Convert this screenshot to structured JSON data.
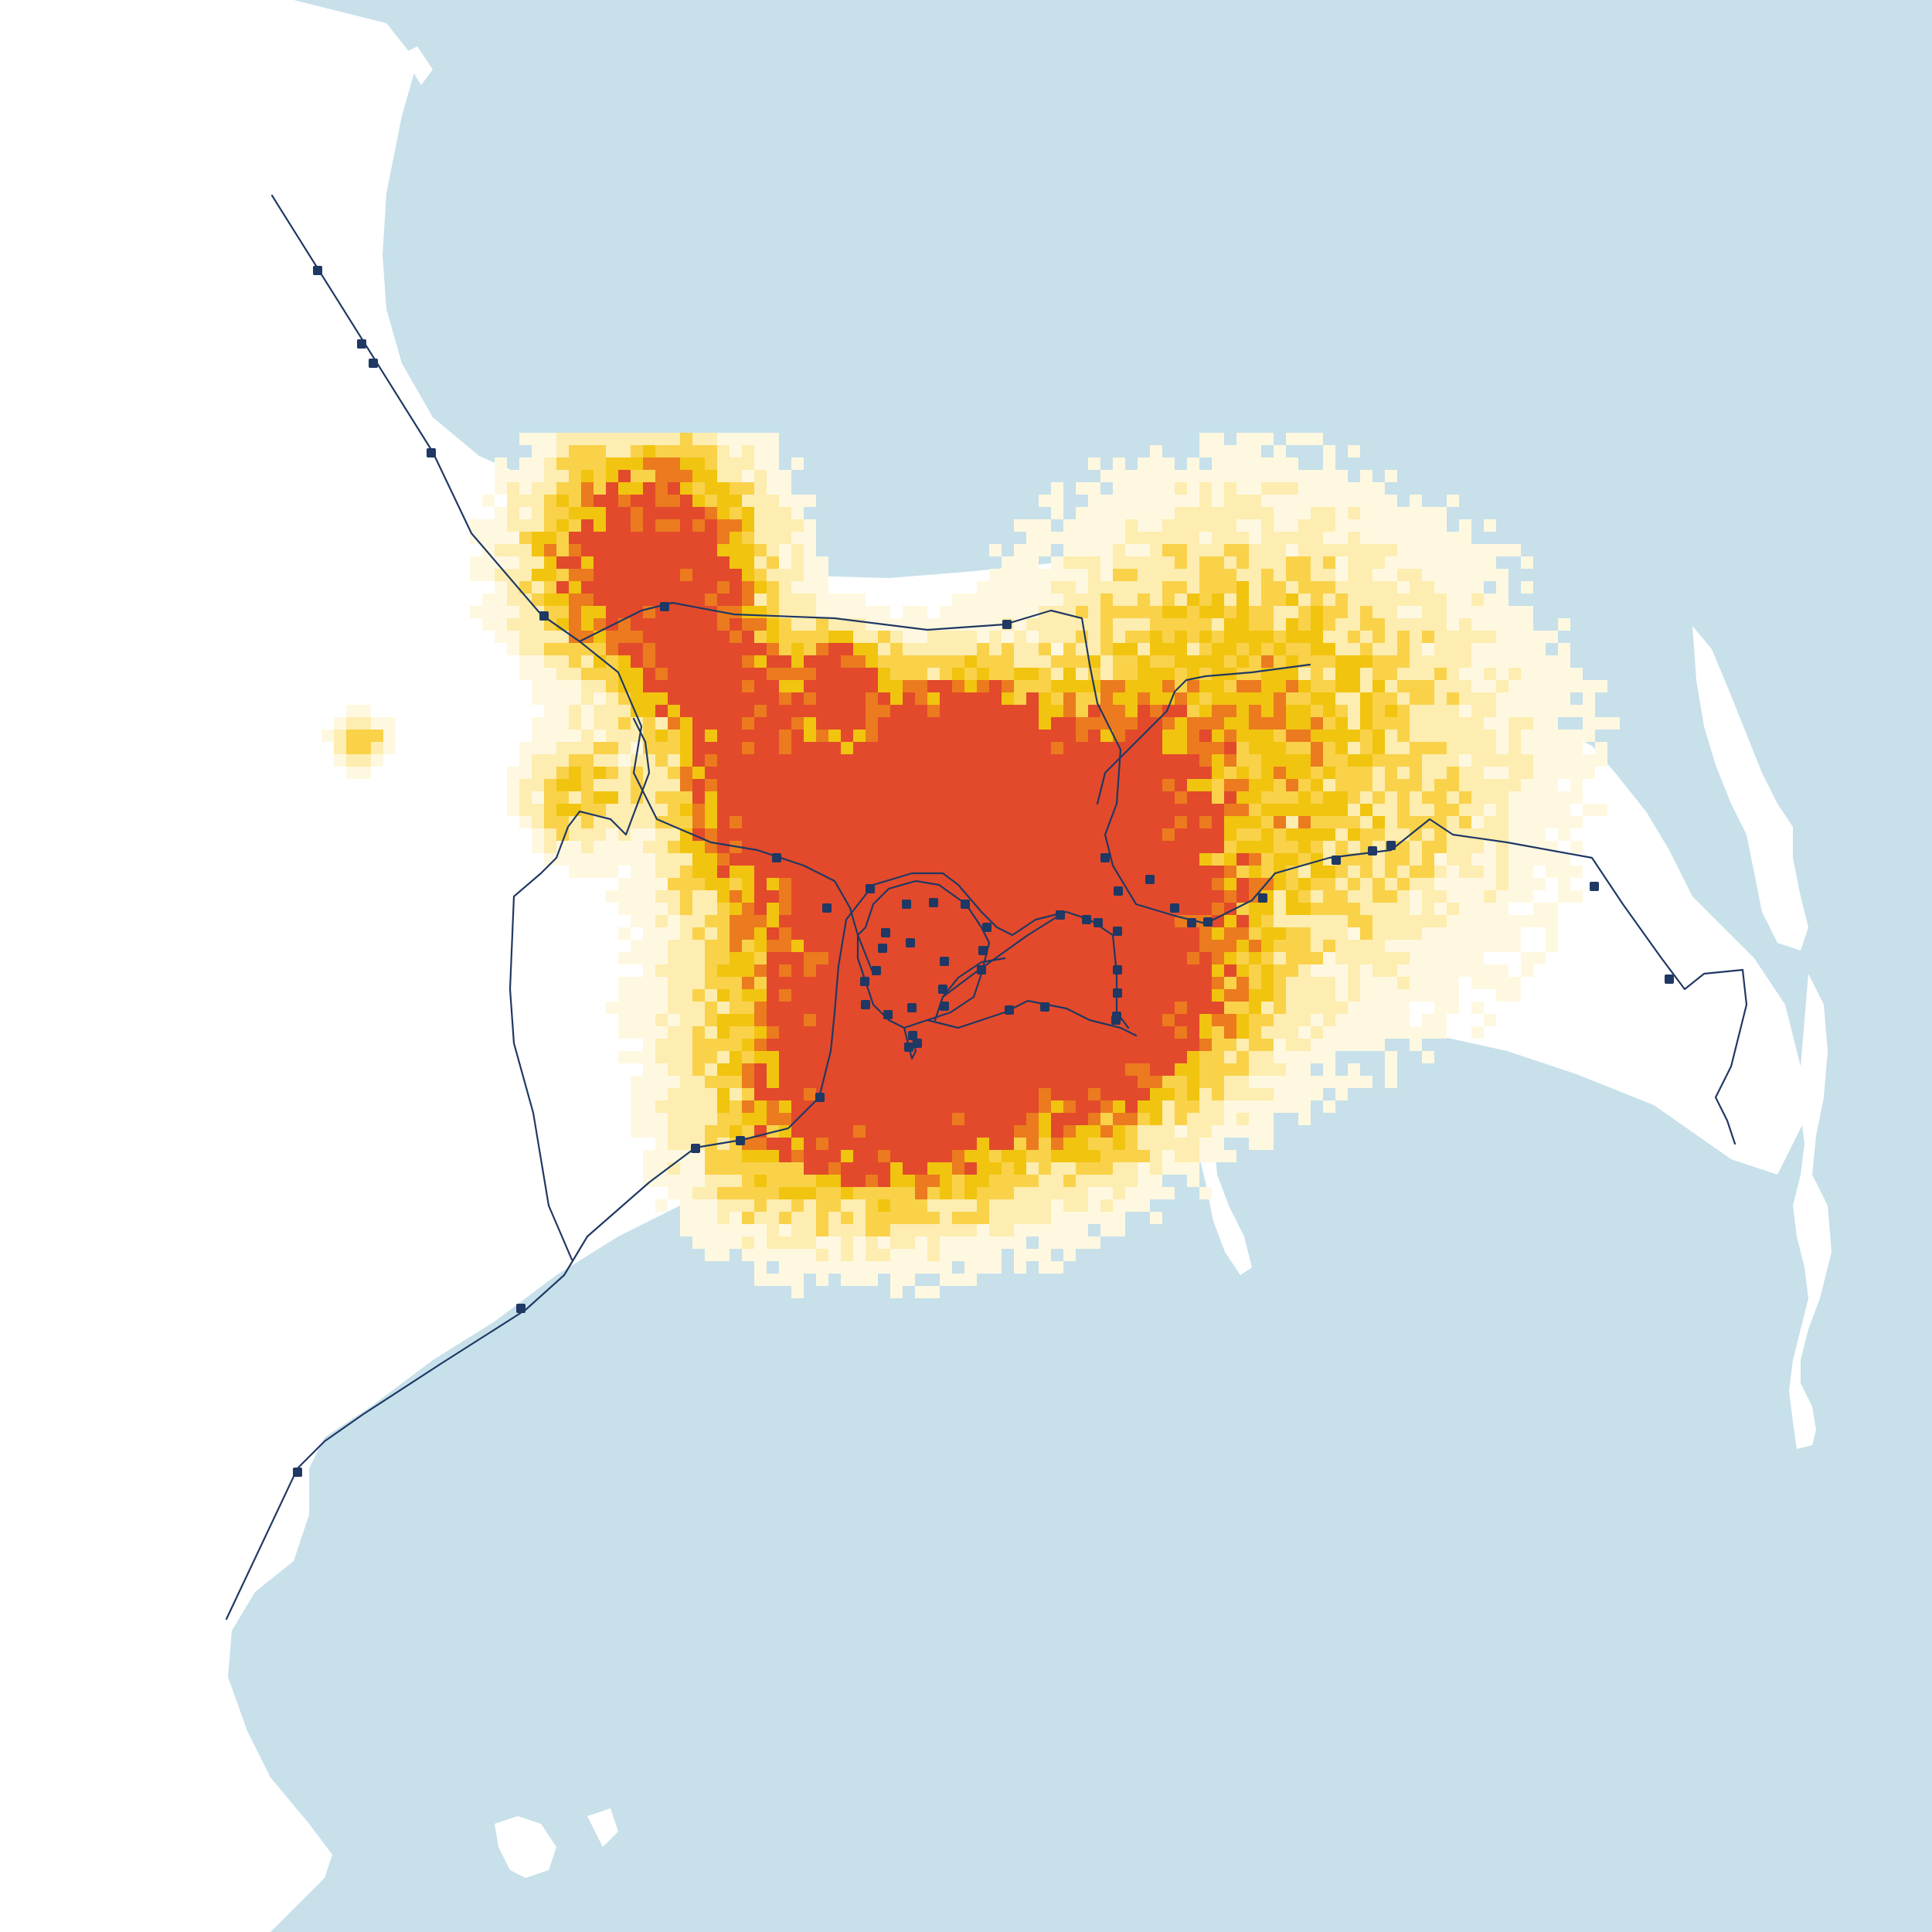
{
  "colors": {
    "water": "#c7e0ea",
    "land": "#ffffff",
    "rail": "#1f3864",
    "station": "#1f3864",
    "density": [
      "#fff8e1",
      "#fdedb0",
      "#f9d24a",
      "#f1c40f",
      "#eb7b1e",
      "#e24a2b"
    ]
  },
  "map": {
    "features": [
      "land",
      "lakes",
      "population-density-grid",
      "rail-lines",
      "rail-stations"
    ]
  }
}
